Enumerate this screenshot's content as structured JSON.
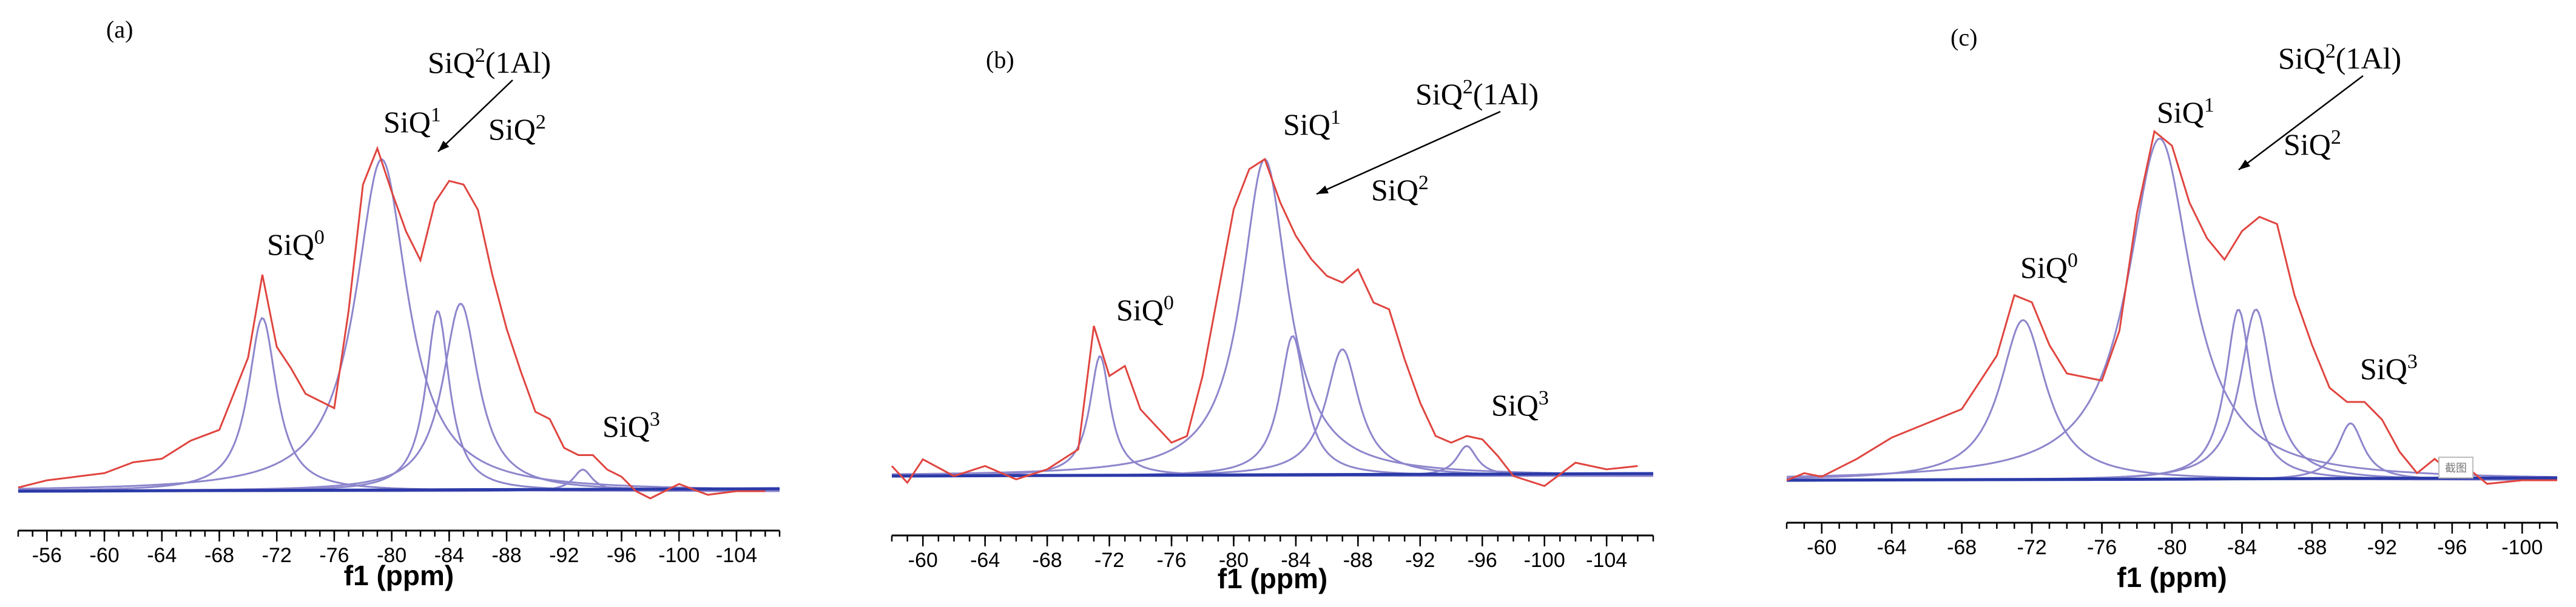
{
  "chart_data": [
    {
      "type": "line",
      "panel_label": "(a)",
      "xlabel": "f1 (ppm)",
      "xlim": [
        -54,
        -107
      ],
      "tick_labels": [
        "-56",
        "-60",
        "-64",
        "-68",
        "-72",
        "-76",
        "-80",
        "-84",
        "-88",
        "-92",
        "-96",
        "-100",
        "-104"
      ],
      "annotations": [
        {
          "base": "SiQ",
          "sup": "0",
          "suffix": "",
          "ppm": -71
        },
        {
          "base": "SiQ",
          "sup": "1",
          "suffix": "",
          "ppm": -79
        },
        {
          "base": "SiQ",
          "sup": "2",
          "suffix": "(1Al)",
          "ppm": -82.5
        },
        {
          "base": "SiQ",
          "sup": "2",
          "suffix": "",
          "ppm": -86
        },
        {
          "base": "SiQ",
          "sup": "3",
          "suffix": "",
          "ppm": -94
        }
      ],
      "fit_peaks": [
        {
          "label": "SiQ0",
          "center": -71.0,
          "width": 1.2,
          "height": 0.48
        },
        {
          "label": "SiQ1",
          "center": -79.3,
          "width": 2.2,
          "height": 0.92
        },
        {
          "label": "SiQ2(1Al)",
          "center": -83.2,
          "width": 1.0,
          "height": 0.5
        },
        {
          "label": "SiQ2",
          "center": -84.8,
          "width": 1.5,
          "height": 0.52
        },
        {
          "label": "SiQ3",
          "center": -93.3,
          "width": 0.8,
          "height": 0.06
        }
      ],
      "experimental": {
        "x": [
          -54,
          -56,
          -58,
          -60,
          -62,
          -64,
          -66,
          -68,
          -69,
          -70,
          -71,
          -72,
          -73,
          -74,
          -76,
          -77,
          -78,
          -79,
          -80,
          -81,
          -82,
          -83,
          -84,
          -85,
          -86,
          -87,
          -88,
          -89,
          -90,
          -91,
          -92,
          -93,
          -94,
          -95,
          -96,
          -97,
          -98,
          -100,
          -102,
          -104,
          -106
        ],
        "y": [
          0.01,
          0.03,
          0.04,
          0.05,
          0.08,
          0.09,
          0.14,
          0.17,
          0.27,
          0.37,
          0.6,
          0.4,
          0.34,
          0.27,
          0.23,
          0.5,
          0.85,
          0.95,
          0.83,
          0.72,
          0.64,
          0.8,
          0.86,
          0.85,
          0.78,
          0.6,
          0.45,
          0.33,
          0.22,
          0.2,
          0.12,
          0.1,
          0.1,
          0.06,
          0.04,
          0.0,
          -0.02,
          0.02,
          -0.01,
          0.0,
          0.0
        ]
      }
    },
    {
      "type": "line",
      "panel_label": "(b)",
      "xlabel": "f1 (ppm)",
      "xlim": [
        -58,
        -107
      ],
      "tick_labels": [
        "-60",
        "-64",
        "-68",
        "-72",
        "-76",
        "-80",
        "-84",
        "-88",
        "-92",
        "-96",
        "-100",
        "-104"
      ],
      "annotations": [
        {
          "base": "SiQ",
          "sup": "0",
          "suffix": "",
          "ppm": -71
        },
        {
          "base": "SiQ",
          "sup": "1",
          "suffix": "",
          "ppm": -80.5
        },
        {
          "base": "SiQ",
          "sup": "2",
          "suffix": "(1Al)",
          "ppm": -85.5
        },
        {
          "base": "SiQ",
          "sup": "2",
          "suffix": "",
          "ppm": -87.5
        },
        {
          "base": "SiQ",
          "sup": "3",
          "suffix": "",
          "ppm": -96
        }
      ],
      "fit_peaks": [
        {
          "label": "SiQ0",
          "center": -71.4,
          "width": 0.8,
          "height": 0.36
        },
        {
          "label": "SiQ1",
          "center": -82.0,
          "width": 1.8,
          "height": 0.95
        },
        {
          "label": "SiQ2(1Al)",
          "center": -83.8,
          "width": 1.0,
          "height": 0.42
        },
        {
          "label": "SiQ2",
          "center": -87.0,
          "width": 1.3,
          "height": 0.38
        },
        {
          "label": "SiQ3",
          "center": -95.0,
          "width": 0.8,
          "height": 0.09
        }
      ],
      "experimental": {
        "x": [
          -58,
          -59,
          -60,
          -62,
          -64,
          -66,
          -68,
          -70,
          -71,
          -72,
          -73,
          -74,
          -76,
          -77,
          -78,
          -79,
          -80,
          -81,
          -82,
          -83,
          -84,
          -85,
          -86,
          -87,
          -88,
          -89,
          -90,
          -91,
          -92,
          -93,
          -94,
          -95,
          -96,
          -97,
          -98,
          -100,
          -102,
          -104,
          -106
        ],
        "y": [
          0.03,
          -0.02,
          0.05,
          0.0,
          0.03,
          -0.01,
          0.02,
          0.08,
          0.45,
          0.3,
          0.33,
          0.2,
          0.1,
          0.12,
          0.3,
          0.55,
          0.8,
          0.92,
          0.95,
          0.82,
          0.72,
          0.65,
          0.6,
          0.58,
          0.62,
          0.52,
          0.5,
          0.35,
          0.22,
          0.12,
          0.1,
          0.12,
          0.11,
          0.06,
          0.0,
          -0.03,
          0.04,
          0.02,
          0.03
        ]
      }
    },
    {
      "type": "line",
      "panel_label": "(c)",
      "xlabel": "f1 (ppm)",
      "xlim": [
        -58,
        -102
      ],
      "tick_labels": [
        "-60",
        "-64",
        "-68",
        "-72",
        "-76",
        "-80",
        "-84",
        "-88",
        "-92",
        "-96",
        "-100"
      ],
      "annotations": [
        {
          "base": "SiQ",
          "sup": "0",
          "suffix": "",
          "ppm": -71.5
        },
        {
          "base": "SiQ",
          "sup": "1",
          "suffix": "",
          "ppm": -78.5
        },
        {
          "base": "SiQ",
          "sup": "2",
          "suffix": "(1Al)",
          "ppm": -83.5
        },
        {
          "base": "SiQ",
          "sup": "2",
          "suffix": "",
          "ppm": -86
        },
        {
          "base": "SiQ",
          "sup": "3",
          "suffix": "",
          "ppm": -91
        }
      ],
      "fit_peaks": [
        {
          "label": "SiQ0",
          "center": -71.5,
          "width": 1.6,
          "height": 0.45
        },
        {
          "label": "SiQ1",
          "center": -79.3,
          "width": 2.2,
          "height": 0.96
        },
        {
          "label": "SiQ2(1Al)",
          "center": -83.8,
          "width": 0.9,
          "height": 0.48
        },
        {
          "label": "SiQ2",
          "center": -84.8,
          "width": 1.1,
          "height": 0.48
        },
        {
          "label": "SiQ3",
          "center": -90.2,
          "width": 0.9,
          "height": 0.16
        }
      ],
      "experimental": {
        "x": [
          -58,
          -59,
          -60,
          -62,
          -64,
          -66,
          -68,
          -70,
          -71,
          -72,
          -73,
          -74,
          -76,
          -77,
          -78,
          -79,
          -80,
          -81,
          -82,
          -83,
          -84,
          -85,
          -86,
          -87,
          -88,
          -89,
          -90,
          -91,
          -92,
          -93,
          -94,
          -95,
          -96,
          -97,
          -98,
          -100,
          -102
        ],
        "y": [
          0.0,
          0.02,
          0.01,
          0.06,
          0.12,
          0.16,
          0.2,
          0.35,
          0.52,
          0.5,
          0.38,
          0.3,
          0.28,
          0.42,
          0.75,
          0.98,
          0.94,
          0.78,
          0.68,
          0.62,
          0.7,
          0.74,
          0.72,
          0.52,
          0.38,
          0.26,
          0.22,
          0.22,
          0.17,
          0.08,
          0.02,
          0.06,
          0.02,
          0.03,
          -0.01,
          0.0,
          0.0
        ]
      }
    }
  ],
  "stamp_text": "截图"
}
